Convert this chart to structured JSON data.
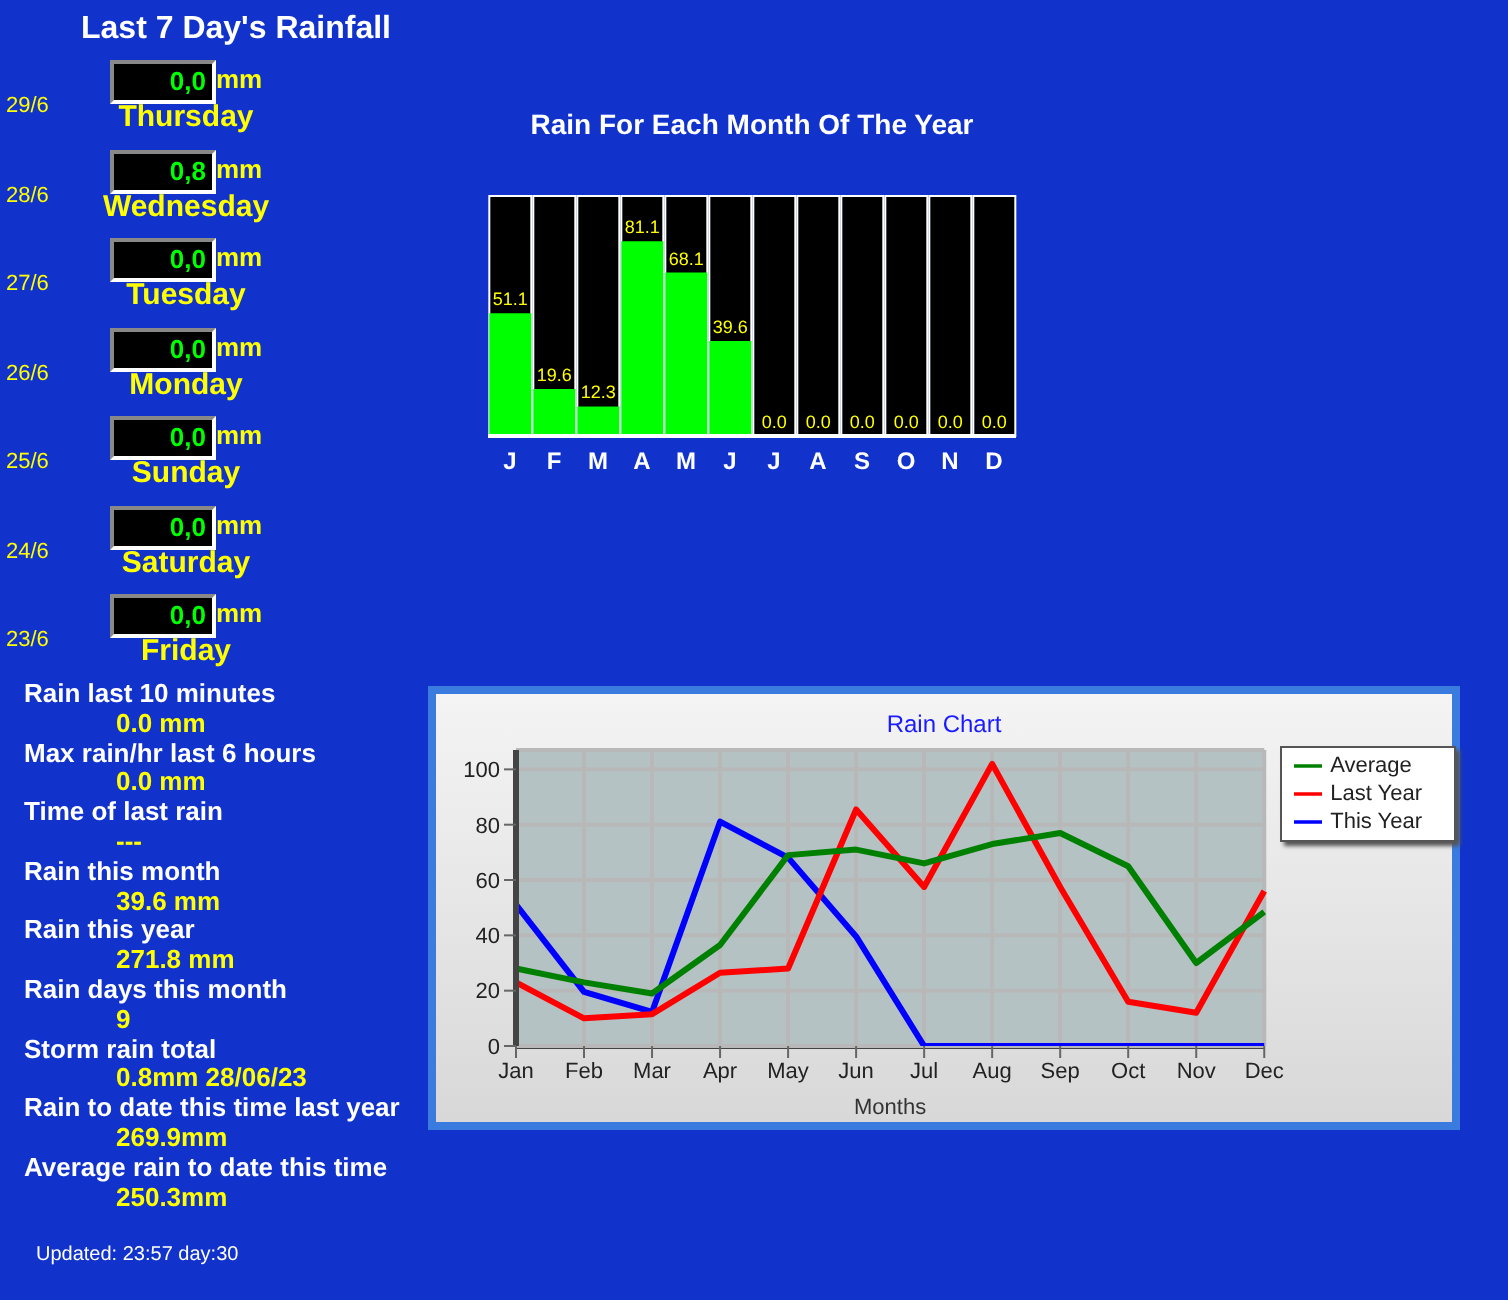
{
  "chart_data": [
    {
      "type": "other",
      "title": "Last 7 Day's Rainfall",
      "annotations": [
        "29/6",
        "0,0",
        "mm",
        "Thursday",
        "28/6",
        "0,8",
        "mm",
        "Wednesday",
        "27/6",
        "0,0",
        "mm",
        "Tuesday",
        "26/6",
        "0,0",
        "mm",
        "Monday",
        "25/6",
        "0,0",
        "mm",
        "Sunday",
        "24/6",
        "0,0",
        "mm",
        "Saturday",
        "23/6",
        "0,0",
        "mm",
        "Friday"
      ]
    },
    {
      "type": "bar",
      "title": "Rain For Each Month Of The Year",
      "categories": [
        "J",
        "F",
        "M",
        "A",
        "M",
        "J",
        "J",
        "A",
        "S",
        "O",
        "N",
        "D"
      ],
      "values": [
        51.1,
        19.6,
        12.3,
        81.1,
        68.1,
        39.6,
        0.0,
        0.0,
        0.0,
        0.0,
        0.0,
        0.0
      ],
      "value_labels": [
        "51.1",
        "19.6",
        "12.3",
        "81.1",
        "68.1",
        "39.6",
        "0.0",
        "0.0",
        "0.0",
        "0.0",
        "0.0",
        "0.0"
      ],
      "color": "#00ff00",
      "tick_labels": "x"
    },
    {
      "type": "line",
      "title": "Rain Chart",
      "xlabel": "Months",
      "categories": [
        "Jan",
        "Feb",
        "Mar",
        "Apr",
        "May",
        "Jun",
        "Jul",
        "Aug",
        "Sep",
        "Oct",
        "Nov",
        "Dec"
      ],
      "ylim": [
        0,
        107
      ],
      "yticks": [
        0,
        20,
        40,
        60,
        80,
        100
      ],
      "grid": true,
      "legend": "right",
      "series": [
        {
          "name": "This Year",
          "color": "#0000ff",
          "values": [
            51.1,
            19.6,
            12.3,
            81.1,
            68.1,
            39.6,
            0,
            0,
            0,
            0,
            0,
            0
          ]
        },
        {
          "name": "Last Year",
          "color": "#ff0000",
          "values": [
            23,
            10,
            11.5,
            26.5,
            28,
            85.5,
            57.5,
            102,
            57.5,
            16,
            12,
            56
          ]
        },
        {
          "name": "Average",
          "color": "#008000",
          "values": [
            28,
            23,
            19,
            36.5,
            69,
            71,
            66,
            73,
            77,
            65,
            30,
            48.5
          ]
        }
      ]
    },
    {
      "type": "other",
      "annotations": [
        "Rain last 10 minutes",
        "0.0 mm",
        "Max rain/hr last 6 hours",
        "0.0 mm",
        "Time of last rain",
        "---",
        "Rain this month",
        "39.6 mm",
        "Rain this year",
        "271.8 mm",
        "Rain days this month",
        "9",
        "Storm rain total",
        "0.8mm 28/06/23",
        "Rain to date this time last year",
        "269.9mm",
        "Average rain to date this time",
        "250.3mm",
        "Updated: 23:57 day:30"
      ]
    }
  ]
}
